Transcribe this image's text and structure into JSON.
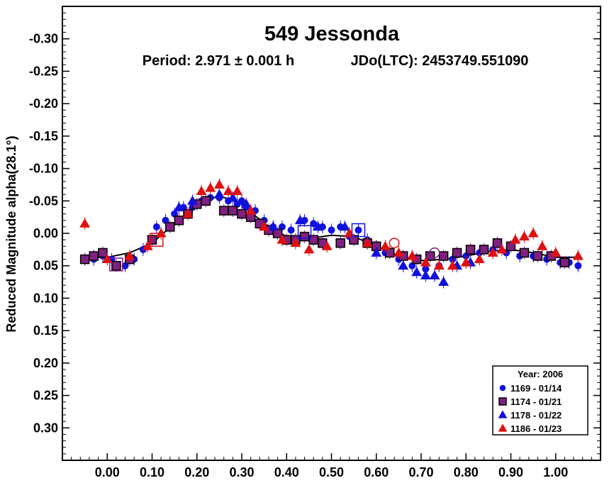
{
  "chart_data": {
    "type": "scatter",
    "title": "549 Jessonda",
    "subtitle_period": "Period: 2.971 ± 0.001 h",
    "subtitle_epoch": "JDo(LTC): 2453749.551090",
    "xlabel": "",
    "ylabel": "Reduced Magnitude alpha(28.1°)",
    "xlim": [
      -0.1,
      1.1
    ],
    "ylim": [
      -0.35,
      0.35
    ],
    "y_inverted": true,
    "x_ticks": [
      0.0,
      0.1,
      0.2,
      0.3,
      0.4,
      0.5,
      0.6,
      0.7,
      0.8,
      0.9,
      1.0
    ],
    "x_tick_labels": [
      "0.00",
      "0.10",
      "0.20",
      "0.30",
      "0.40",
      "0.50",
      "0.60",
      "0.70",
      "0.80",
      "0.90",
      "1.00"
    ],
    "y_ticks": [
      -0.3,
      -0.25,
      -0.2,
      -0.15,
      -0.1,
      -0.05,
      0.0,
      0.05,
      0.1,
      0.15,
      0.2,
      0.25,
      0.3
    ],
    "y_tick_labels": [
      "-0.30",
      "-0.25",
      "-0.20",
      "-0.15",
      "-0.10",
      "-0.05",
      "0.00",
      "0.05",
      "0.10",
      "0.15",
      "0.20",
      "0.25",
      "0.30"
    ],
    "grid": false,
    "legend": {
      "placement": "bottom-right",
      "title": "Year: 2006"
    },
    "series": [
      {
        "name": "1169 - 01/14",
        "marker": "circle",
        "color": "#1010e0",
        "x": [
          -0.05,
          -0.03,
          -0.01,
          0.01,
          0.04,
          0.06,
          0.08,
          0.11,
          0.13,
          0.15,
          0.17,
          0.19,
          0.21,
          0.23,
          0.25,
          0.27,
          0.29,
          0.3,
          0.31,
          0.33,
          0.35,
          0.37,
          0.39,
          0.41,
          0.44,
          0.46,
          0.48,
          0.5,
          0.52,
          0.54,
          0.56,
          0.58,
          0.6,
          0.62,
          0.65,
          0.68,
          0.71,
          0.74,
          0.77,
          0.8,
          0.83,
          0.86,
          0.89,
          0.92,
          0.95,
          0.98,
          1.01,
          1.03,
          1.05
        ],
        "y": [
          0.04,
          0.04,
          0.035,
          0.04,
          0.05,
          0.04,
          0.025,
          -0.01,
          -0.02,
          -0.03,
          -0.04,
          -0.04,
          -0.05,
          -0.055,
          -0.055,
          -0.05,
          -0.045,
          -0.05,
          -0.04,
          -0.035,
          -0.02,
          -0.01,
          -0.01,
          -0.005,
          -0.02,
          -0.015,
          -0.01,
          -0.005,
          -0.01,
          0.005,
          -0.005,
          0.01,
          0.02,
          0.03,
          0.04,
          0.05,
          0.055,
          0.05,
          0.04,
          0.035,
          0.03,
          0.025,
          0.03,
          0.035,
          0.035,
          0.04,
          0.045,
          0.045,
          0.05
        ]
      },
      {
        "name": "1174 - 01/21",
        "marker": "square",
        "color": "#802080",
        "x": [
          -0.05,
          -0.03,
          -0.01,
          0.02,
          0.05,
          0.1,
          0.14,
          0.16,
          0.18,
          0.2,
          0.22,
          0.26,
          0.28,
          0.3,
          0.32,
          0.34,
          0.36,
          0.38,
          0.4,
          0.42,
          0.44,
          0.46,
          0.48,
          0.52,
          0.55,
          0.58,
          0.6,
          0.63,
          0.66,
          0.69,
          0.72,
          0.75,
          0.78,
          0.81,
          0.84,
          0.87,
          0.9,
          0.93,
          0.96,
          0.99,
          1.02
        ],
        "y": [
          0.04,
          0.035,
          0.03,
          0.05,
          0.04,
          0.01,
          -0.01,
          -0.02,
          -0.03,
          -0.045,
          -0.05,
          -0.035,
          -0.035,
          -0.03,
          -0.025,
          -0.015,
          -0.005,
          0.0,
          0.01,
          0.01,
          0.005,
          0.01,
          0.015,
          0.015,
          0.01,
          0.015,
          0.02,
          0.03,
          0.035,
          0.04,
          0.035,
          0.035,
          0.03,
          0.025,
          0.025,
          0.015,
          0.02,
          0.03,
          0.035,
          0.035,
          0.045
        ]
      },
      {
        "name": "1178 - 01/22",
        "marker": "triangle",
        "color": "#1010e0",
        "x": [
          0.16,
          0.19,
          0.25,
          0.28,
          0.31,
          0.37,
          0.43,
          0.47,
          0.53,
          0.6,
          0.66,
          0.69,
          0.71,
          0.73,
          0.75,
          0.78,
          0.81
        ],
        "y": [
          -0.04,
          -0.05,
          -0.06,
          -0.055,
          -0.045,
          -0.01,
          -0.02,
          -0.01,
          -0.01,
          0.03,
          0.05,
          0.06,
          0.065,
          0.065,
          0.075,
          0.05,
          0.045
        ]
      },
      {
        "name": "1186 - 01/23",
        "marker": "triangle",
        "color": "#e01010",
        "x": [
          -0.05,
          0.0,
          0.05,
          0.09,
          0.12,
          0.18,
          0.21,
          0.23,
          0.25,
          0.27,
          0.29,
          0.32,
          0.35,
          0.39,
          0.42,
          0.45,
          0.49,
          0.54,
          0.58,
          0.62,
          0.65,
          0.68,
          0.71,
          0.74,
          0.77,
          0.8,
          0.83,
          0.86,
          0.88,
          0.91,
          0.93,
          0.95,
          0.97,
          1.0,
          1.05
        ],
        "y": [
          -0.015,
          0.04,
          0.035,
          0.02,
          0.0,
          -0.03,
          -0.065,
          -0.07,
          -0.075,
          -0.065,
          -0.065,
          -0.035,
          -0.01,
          0.01,
          0.015,
          0.025,
          0.02,
          0.0,
          0.015,
          0.02,
          0.03,
          0.035,
          0.045,
          0.05,
          0.05,
          0.045,
          0.04,
          0.03,
          0.025,
          0.01,
          0.005,
          0.0,
          0.02,
          0.03,
          0.035
        ]
      }
    ],
    "fit_curve": {
      "x": [
        -0.05,
        0.0,
        0.05,
        0.1,
        0.15,
        0.2,
        0.25,
        0.3,
        0.35,
        0.4,
        0.45,
        0.5,
        0.55,
        0.6,
        0.65,
        0.7,
        0.75,
        0.8,
        0.85,
        0.9,
        0.95,
        1.0,
        1.05
      ],
      "y": [
        0.037,
        0.037,
        0.03,
        0.015,
        -0.015,
        -0.045,
        -0.058,
        -0.045,
        -0.015,
        0.005,
        0.008,
        0.003,
        0.005,
        0.02,
        0.035,
        0.042,
        0.04,
        0.035,
        0.028,
        0.025,
        0.03,
        0.037,
        0.037
      ]
    },
    "open_markers": [
      {
        "series": "1169 - 01/14",
        "marker": "square",
        "color": "#1010e0",
        "x": 0.56,
        "y": -0.005
      },
      {
        "series": "1169 - 01/14",
        "marker": "square",
        "color": "#1010e0",
        "x": 0.44,
        "y": -0.002
      },
      {
        "series": "1174 - 01/21",
        "marker": "square",
        "color": "#802080",
        "x": 0.02,
        "y": 0.048
      },
      {
        "series": "1174 - 01/21",
        "marker": "circle",
        "color": "#802080",
        "x": 0.73,
        "y": 0.03
      },
      {
        "series": "1186 - 01/23",
        "marker": "square",
        "color": "#e01010",
        "x": 0.11,
        "y": 0.01
      },
      {
        "series": "1186 - 01/23",
        "marker": "circle",
        "color": "#e01010",
        "x": 0.64,
        "y": 0.015
      }
    ]
  }
}
